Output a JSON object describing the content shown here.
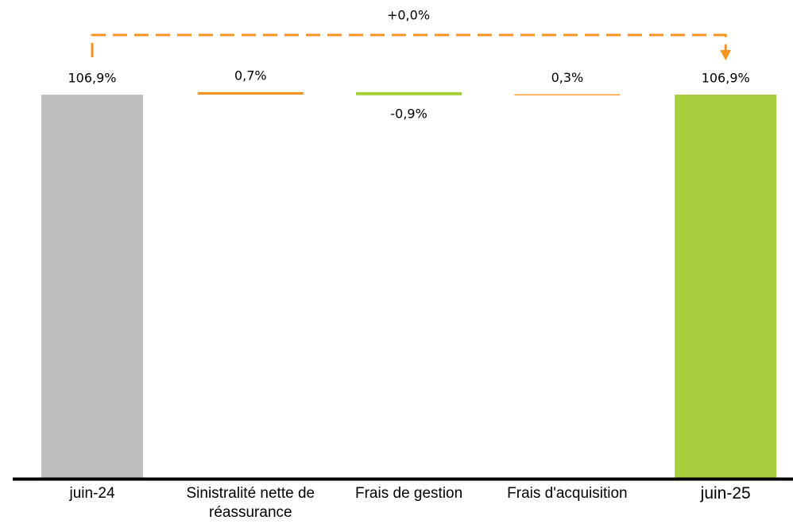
{
  "chart_data": {
    "type": "waterfall",
    "categories": [
      "juin-24",
      "Sinistralité nette de réassurance",
      "Frais de gestion",
      "Frais d'acquisition",
      "juin-25"
    ],
    "values": [
      106.9,
      0.7,
      -0.9,
      0.3,
      106.9
    ],
    "value_labels": [
      "106,9%",
      "0,7%",
      "-0,9%",
      "0,3%",
      "106,9%"
    ],
    "is_total": [
      true,
      false,
      false,
      false,
      true
    ],
    "colors": [
      "#bfbebe",
      "#f7931e",
      "#a6cd3c",
      "#f7931e",
      "#a6cd3c"
    ],
    "ylim": [
      0,
      110
    ],
    "change": {
      "value": 0.0,
      "label": "+0,0%",
      "color": "#f7931e"
    }
  }
}
